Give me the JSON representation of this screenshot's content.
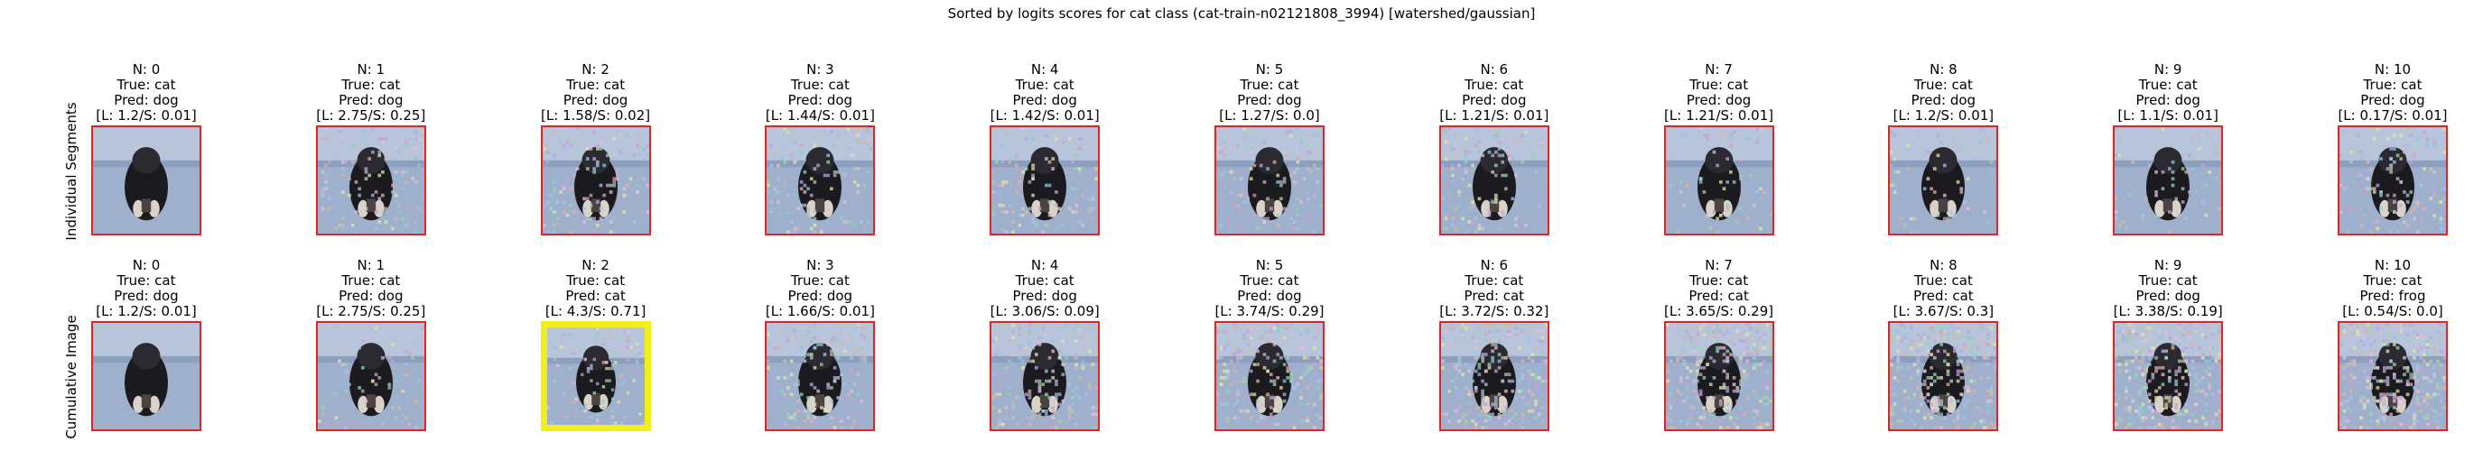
{
  "chart_data": {
    "type": "image-grid",
    "title": "Sorted by logits scores for cat class (cat-train-n02121808_3994) [watershed/gaussian]",
    "rows": [
      {
        "label": "Individual Segments",
        "panels": [
          {
            "n": "N: 0",
            "true": "True: cat",
            "pred": "Pred: dog",
            "scores": "[L: 1.2/S: 0.01]",
            "highlight": false,
            "noise": 0.0
          },
          {
            "n": "N: 1",
            "true": "True: cat",
            "pred": "Pred: dog",
            "scores": "[L: 2.75/S: 0.25]",
            "highlight": false,
            "noise": 0.3
          },
          {
            "n": "N: 2",
            "true": "True: cat",
            "pred": "Pred: dog",
            "scores": "[L: 1.58/S: 0.02]",
            "highlight": false,
            "noise": 0.3
          },
          {
            "n": "N: 3",
            "true": "True: cat",
            "pred": "Pred: dog",
            "scores": "[L: 1.44/S: 0.01]",
            "highlight": false,
            "noise": 0.3
          },
          {
            "n": "N: 4",
            "true": "True: cat",
            "pred": "Pred: dog",
            "scores": "[L: 1.42/S: 0.01]",
            "highlight": false,
            "noise": 0.3
          },
          {
            "n": "N: 5",
            "true": "True: cat",
            "pred": "Pred: dog",
            "scores": "[L: 1.27/S: 0.0]",
            "highlight": false,
            "noise": 0.3
          },
          {
            "n": "N: 6",
            "true": "True: cat",
            "pred": "Pred: dog",
            "scores": "[L: 1.21/S: 0.01]",
            "highlight": false,
            "noise": 0.3
          },
          {
            "n": "N: 7",
            "true": "True: cat",
            "pred": "Pred: dog",
            "scores": "[L: 1.21/S: 0.01]",
            "highlight": false,
            "noise": 0.15
          },
          {
            "n": "N: 8",
            "true": "True: cat",
            "pred": "Pred: dog",
            "scores": "[L: 1.2/S: 0.01]",
            "highlight": false,
            "noise": 0.15
          },
          {
            "n": "N: 9",
            "true": "True: cat",
            "pred": "Pred: dog",
            "scores": "[L: 1.1/S: 0.01]",
            "highlight": false,
            "noise": 0.15
          },
          {
            "n": "N: 10",
            "true": "True: cat",
            "pred": "Pred: dog",
            "scores": "[L: 0.17/S: 0.01]",
            "highlight": false,
            "noise": 0.3
          }
        ]
      },
      {
        "label": "Cumulative Image",
        "panels": [
          {
            "n": "N: 0",
            "true": "True: cat",
            "pred": "Pred: dog",
            "scores": "[L: 1.2/S: 0.01]",
            "highlight": false,
            "noise": 0.0
          },
          {
            "n": "N: 1",
            "true": "True: cat",
            "pred": "Pred: dog",
            "scores": "[L: 2.75/S: 0.25]",
            "highlight": false,
            "noise": 0.15
          },
          {
            "n": "N: 2",
            "true": "True: cat",
            "pred": "Pred: cat",
            "scores": "[L: 4.3/S: 0.71]",
            "highlight": true,
            "noise": 0.25
          },
          {
            "n": "N: 3",
            "true": "True: cat",
            "pred": "Pred: dog",
            "scores": "[L: 1.66/S: 0.01]",
            "highlight": false,
            "noise": 0.35
          },
          {
            "n": "N: 4",
            "true": "True: cat",
            "pred": "Pred: dog",
            "scores": "[L: 3.06/S: 0.09]",
            "highlight": false,
            "noise": 0.45
          },
          {
            "n": "N: 5",
            "true": "True: cat",
            "pred": "Pred: dog",
            "scores": "[L: 3.74/S: 0.29]",
            "highlight": false,
            "noise": 0.5
          },
          {
            "n": "N: 6",
            "true": "True: cat",
            "pred": "Pred: cat",
            "scores": "[L: 3.72/S: 0.32]",
            "highlight": false,
            "noise": 0.6
          },
          {
            "n": "N: 7",
            "true": "True: cat",
            "pred": "Pred: cat",
            "scores": "[L: 3.65/S: 0.29]",
            "highlight": false,
            "noise": 0.65
          },
          {
            "n": "N: 8",
            "true": "True: cat",
            "pred": "Pred: cat",
            "scores": "[L: 3.67/S: 0.3]",
            "highlight": false,
            "noise": 0.7
          },
          {
            "n": "N: 9",
            "true": "True: cat",
            "pred": "Pred: dog",
            "scores": "[L: 3.38/S: 0.19]",
            "highlight": false,
            "noise": 0.75
          },
          {
            "n": "N: 10",
            "true": "True: cat",
            "pred": "Pred: frog",
            "scores": "[L: 0.54/S: 0.0]",
            "highlight": false,
            "noise": 0.8
          }
        ]
      }
    ],
    "colors": {
      "border": "#e8231f",
      "highlight_border": "#f2ee18",
      "background": "#9fb0cc",
      "wall": "#b7c4d9",
      "cat": "#1a1a1f"
    }
  }
}
